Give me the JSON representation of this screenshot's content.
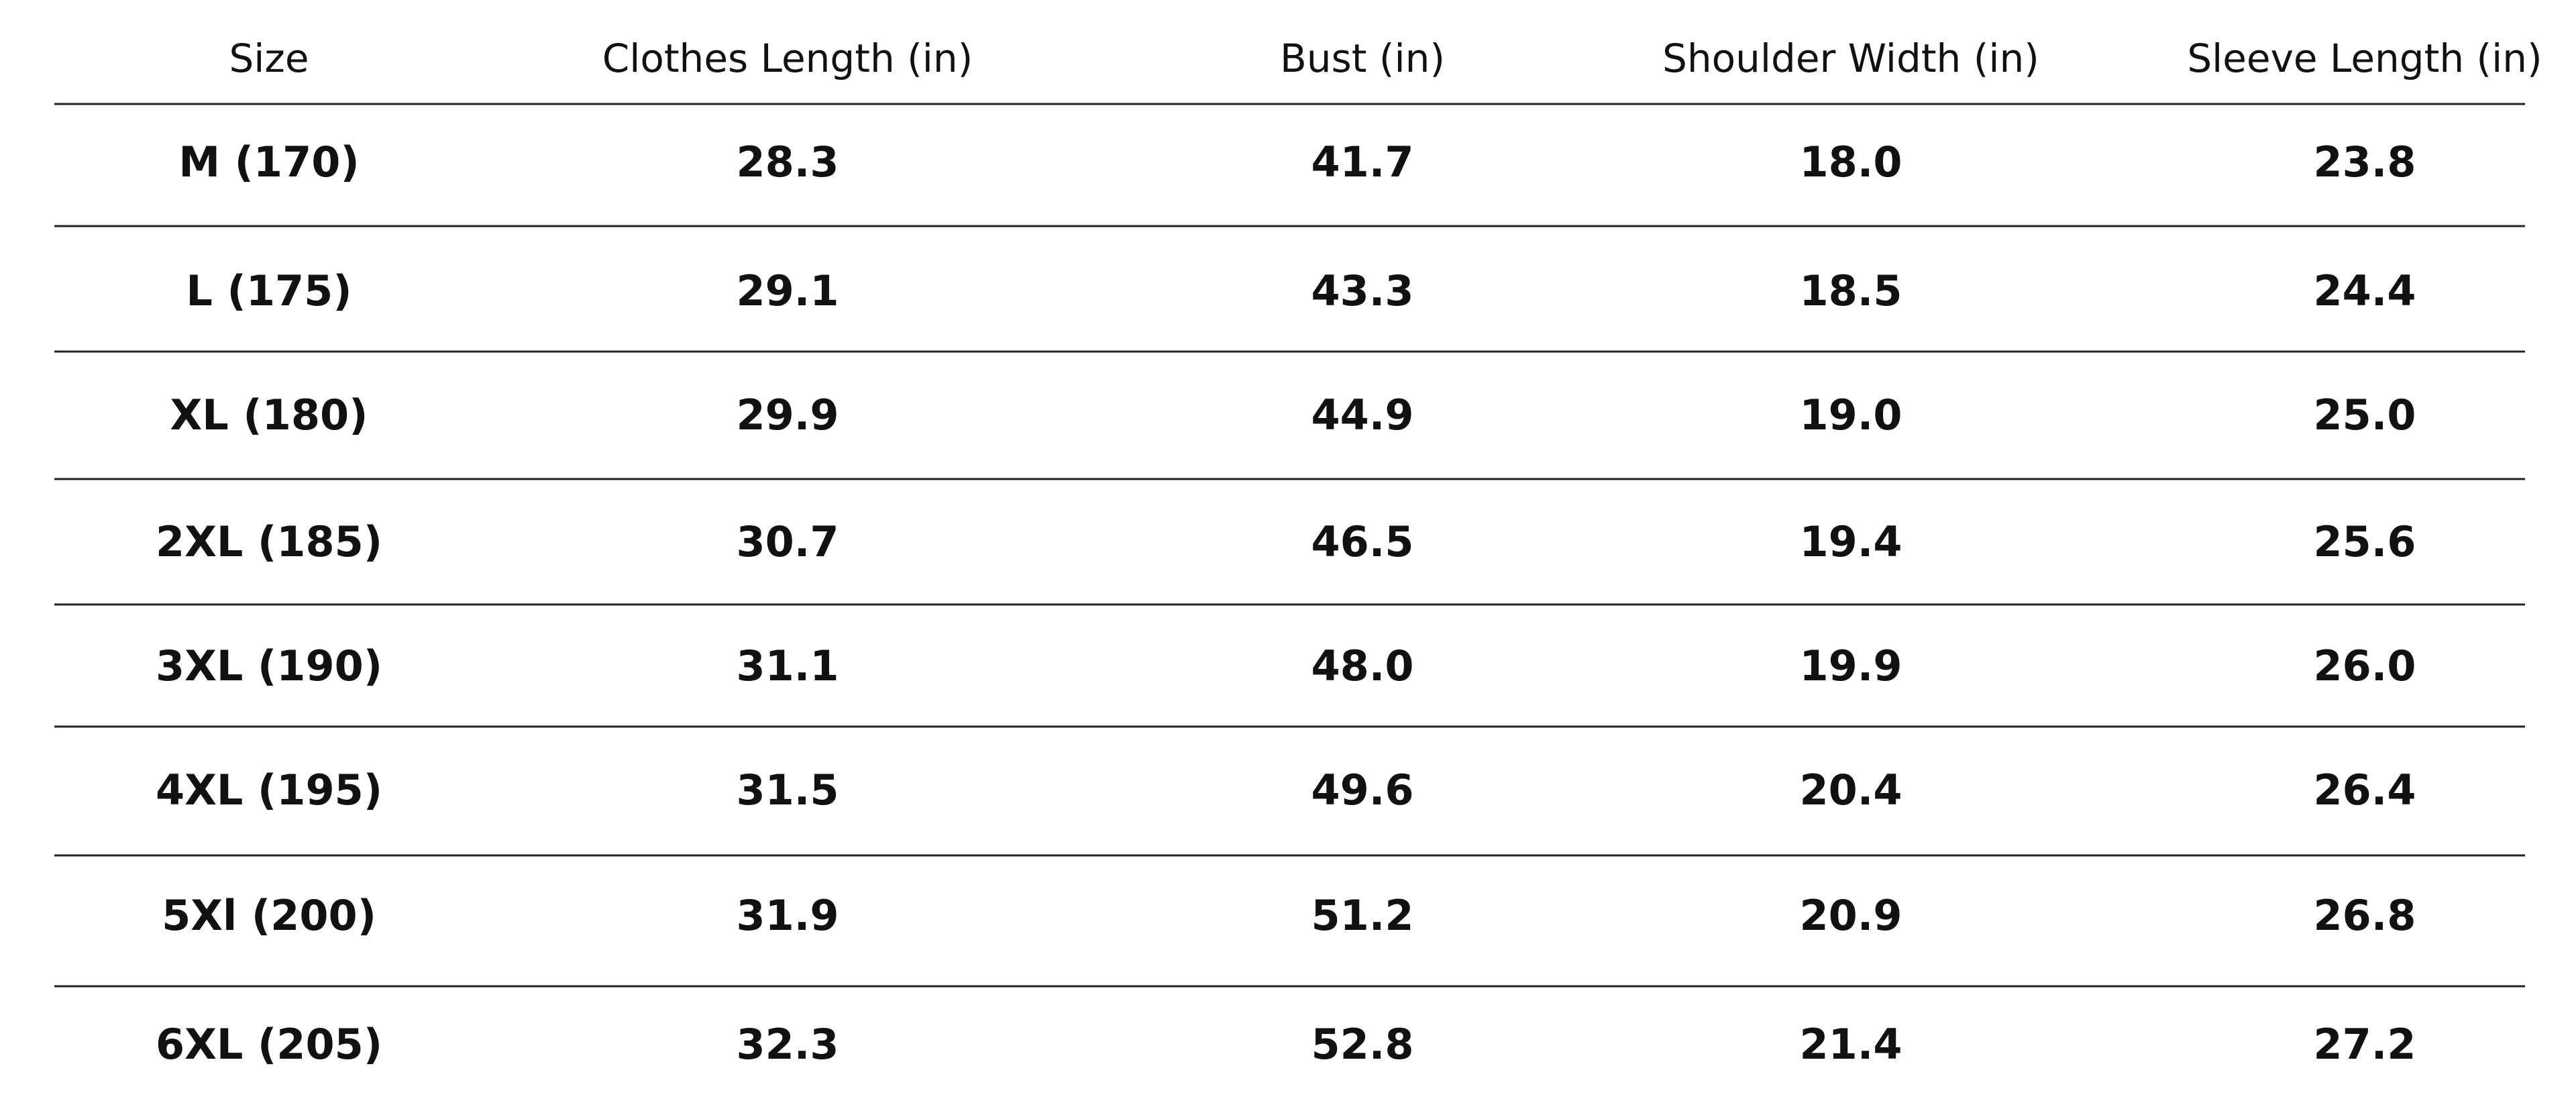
{
  "table": {
    "header": [
      "Size",
      "Clothes Length (in)",
      "Bust (in)",
      "Shoulder Width (in)",
      "Sleeve Length (in)"
    ],
    "rows": [
      [
        "M (170)",
        "28.3",
        "41.7",
        "18.0",
        "23.8"
      ],
      [
        "L (175)",
        "29.1",
        "43.3",
        "18.5",
        "24.4"
      ],
      [
        "XL (180)",
        "29.9",
        "44.9",
        "19.0",
        "25.0"
      ],
      [
        "2XL (185)",
        "30.7",
        "46.5",
        "19.4",
        "25.6"
      ],
      [
        "3XL (190)",
        "31.1",
        "48.0",
        "19.9",
        "26.0"
      ],
      [
        "4XL (195)",
        "31.5",
        "49.6",
        "20.4",
        "26.4"
      ],
      [
        "5Xl (200)",
        "31.9",
        "51.2",
        "20.9",
        "26.8"
      ],
      [
        "6XL (205)",
        "32.3",
        "52.8",
        "21.4",
        "27.2"
      ]
    ]
  }
}
